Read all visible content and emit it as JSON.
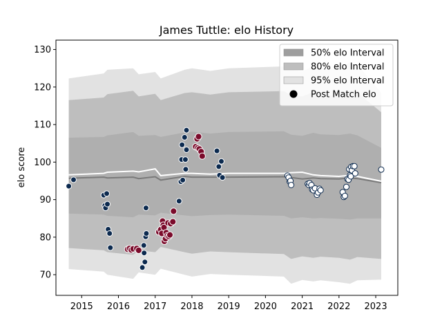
{
  "chart_data": {
    "type": "scatter",
    "title": "James Tuttle: elo History",
    "xlabel": "",
    "ylabel": "elo score",
    "xlim": [
      2014.3,
      2023.6
    ],
    "ylim": [
      64.5,
      132.5
    ],
    "x_ticks": [
      2015,
      2016,
      2017,
      2018,
      2019,
      2020,
      2021,
      2022,
      2023
    ],
    "x_tick_labels": [
      "2015",
      "2016",
      "2017",
      "2018",
      "2019",
      "2020",
      "2021",
      "2022",
      "2023"
    ],
    "y_ticks": [
      70,
      80,
      90,
      100,
      110,
      120,
      130
    ],
    "y_tick_labels": [
      "70",
      "80",
      "90",
      "100",
      "110",
      "120",
      "130"
    ],
    "grid": false,
    "legend_position": "top-right",
    "legend": [
      {
        "label": "50% elo Interval",
        "kind": "band50"
      },
      {
        "label": "80% elo Interval",
        "kind": "band80"
      },
      {
        "label": "95% elo Interval",
        "kind": "band95"
      },
      {
        "label": "Post Match elo",
        "kind": "marker"
      }
    ],
    "colors": {
      "band50": "#9e9e9e",
      "band80": "#bebebe",
      "band95": "#e2e2e2",
      "mean_line": "#7a7a7a",
      "median_line": "#ffffff",
      "navy": "#0c2a4f",
      "maroon": "#7b0b2b",
      "white": "#ffffff",
      "marker_edge": "#ffffff"
    },
    "bands": {
      "x": [
        2014.65,
        2015.6,
        2015.7,
        2016.4,
        2016.55,
        2017.0,
        2017.15,
        2017.8,
        2018.0,
        2018.5,
        2019.0,
        2020.5,
        2020.7,
        2021.0,
        2021.3,
        2021.5,
        2022.0,
        2022.3,
        2022.5,
        2023.15
      ],
      "p95_hi": [
        122.3,
        123.6,
        124.6,
        125.0,
        123.4,
        124.0,
        122.3,
        124.6,
        125.0,
        124.3,
        125.0,
        125.5,
        124.5,
        124.2,
        125.5,
        125.0,
        124.6,
        126.6,
        126.0,
        118.5
      ],
      "p95_lo": [
        71.5,
        70.8,
        70.0,
        68.9,
        70.6,
        70.0,
        71.6,
        70.0,
        69.5,
        70.2,
        70.0,
        69.5,
        67.6,
        68.6,
        68.2,
        68.5,
        68.0,
        67.6,
        68.5,
        68.7
      ],
      "p80_hi": [
        116.5,
        117.2,
        118.1,
        119.0,
        117.5,
        118.2,
        116.5,
        118.4,
        118.6,
        118.0,
        118.6,
        118.9,
        117.8,
        117.5,
        118.6,
        118.0,
        117.6,
        119.0,
        118.5,
        113.3
      ],
      "p80_lo": [
        77.1,
        76.5,
        76.0,
        75.3,
        76.5,
        76.0,
        77.4,
        76.0,
        75.6,
        76.2,
        76.0,
        75.5,
        74.2,
        74.9,
        74.5,
        74.8,
        74.5,
        74.0,
        74.7,
        74.2
      ],
      "p50_hi": [
        106.5,
        106.7,
        107.1,
        108.0,
        107.0,
        107.2,
        106.7,
        107.9,
        108.1,
        107.6,
        108.0,
        108.2,
        107.3,
        107.0,
        107.8,
        107.4,
        107.2,
        107.6,
        107.1,
        103.8
      ],
      "p50_lo": [
        86.3,
        86.0,
        85.7,
        85.3,
        86.0,
        85.8,
        86.5,
        85.8,
        85.6,
        85.9,
        86.0,
        85.7,
        85.0,
        85.3,
        85.0,
        85.1,
        84.9,
        84.7,
        85.0,
        85.0
      ],
      "mean": [
        95.7,
        96.0,
        95.8,
        96.0,
        95.6,
        96.1,
        95.2,
        96.2,
        96.0,
        96.0,
        96.0,
        96.1,
        95.9,
        95.5,
        95.8,
        95.6,
        95.5,
        95.8,
        95.6,
        94.5
      ],
      "median": [
        96.6,
        97.0,
        97.3,
        97.6,
        97.4,
        98.2,
        96.4,
        97.0,
        97.0,
        96.8,
        97.0,
        97.0,
        97.2,
        97.3,
        96.6,
        96.4,
        96.2,
        96.5,
        96.2,
        94.9
      ]
    },
    "series": [
      {
        "color": "navy",
        "points": [
          [
            2014.65,
            93.6
          ],
          [
            2014.78,
            95.3
          ],
          [
            2015.6,
            91.2
          ],
          [
            2015.63,
            88.4
          ],
          [
            2015.65,
            87.8
          ],
          [
            2015.68,
            91.6
          ],
          [
            2015.7,
            88.8
          ],
          [
            2015.72,
            82.1
          ],
          [
            2015.76,
            81.0
          ],
          [
            2015.78,
            77.2
          ],
          [
            2016.65,
            71.9
          ],
          [
            2016.69,
            77.8
          ],
          [
            2016.7,
            75.8
          ],
          [
            2016.72,
            73.4
          ],
          [
            2016.74,
            80.1
          ],
          [
            2016.76,
            81.0
          ],
          [
            2016.75,
            87.8
          ],
          [
            2017.65,
            89.6
          ],
          [
            2017.7,
            94.8
          ],
          [
            2017.75,
            95.2
          ],
          [
            2017.72,
            100.7
          ],
          [
            2017.73,
            104.6
          ],
          [
            2017.8,
            106.6
          ],
          [
            2017.82,
            100.7
          ],
          [
            2017.83,
            98.1
          ],
          [
            2017.85,
            103.3
          ],
          [
            2017.85,
            108.5
          ],
          [
            2018.68,
            103.0
          ],
          [
            2018.73,
            98.8
          ],
          [
            2018.75,
            96.5
          ],
          [
            2018.8,
            100.2
          ],
          [
            2018.83,
            95.9
          ]
        ]
      },
      {
        "color": "maroon",
        "points": [
          [
            2016.25,
            76.8
          ],
          [
            2016.3,
            77.0
          ],
          [
            2016.35,
            76.6
          ],
          [
            2016.4,
            76.9
          ],
          [
            2016.5,
            77.0
          ],
          [
            2016.55,
            76.5
          ],
          [
            2017.1,
            81.4
          ],
          [
            2017.15,
            82.0
          ],
          [
            2017.18,
            81.0
          ],
          [
            2017.2,
            84.3
          ],
          [
            2017.22,
            83.2
          ],
          [
            2017.24,
            82.6
          ],
          [
            2017.25,
            78.9
          ],
          [
            2017.28,
            79.6
          ],
          [
            2017.3,
            81.2
          ],
          [
            2017.33,
            80.4
          ],
          [
            2017.35,
            83.8
          ],
          [
            2017.37,
            80.2
          ],
          [
            2017.4,
            80.6
          ],
          [
            2017.42,
            83.6
          ],
          [
            2017.48,
            84.1
          ],
          [
            2017.5,
            86.9
          ],
          [
            2018.1,
            104.1
          ],
          [
            2018.14,
            106.2
          ],
          [
            2018.16,
            103.8
          ],
          [
            2018.18,
            106.8
          ],
          [
            2018.2,
            103.5
          ],
          [
            2018.25,
            102.8
          ],
          [
            2018.28,
            101.6
          ]
        ]
      },
      {
        "color": "white",
        "points": [
          [
            2020.6,
            96.4
          ],
          [
            2020.63,
            95.9
          ],
          [
            2020.66,
            94.8
          ],
          [
            2020.68,
            95.0
          ],
          [
            2020.7,
            93.9
          ],
          [
            2021.15,
            94.2
          ],
          [
            2021.18,
            93.9
          ],
          [
            2021.2,
            94.4
          ],
          [
            2021.25,
            93.9
          ],
          [
            2021.27,
            92.7
          ],
          [
            2021.3,
            92.5
          ],
          [
            2021.35,
            93.0
          ],
          [
            2021.4,
            91.3
          ],
          [
            2021.43,
            91.9
          ],
          [
            2021.47,
            92.9
          ],
          [
            2021.5,
            92.5
          ],
          [
            2022.1,
            92.0
          ],
          [
            2022.13,
            90.7
          ],
          [
            2022.16,
            91.0
          ],
          [
            2022.2,
            93.4
          ],
          [
            2022.23,
            95.5
          ],
          [
            2022.26,
            95.3
          ],
          [
            2022.28,
            98.1
          ],
          [
            2022.3,
            96.5
          ],
          [
            2022.32,
            96.2
          ],
          [
            2022.33,
            98.7
          ],
          [
            2022.35,
            97.8
          ],
          [
            2022.38,
            98.9
          ],
          [
            2022.42,
            98.9
          ],
          [
            2022.44,
            97.0
          ],
          [
            2023.15,
            98.0
          ]
        ]
      }
    ]
  }
}
